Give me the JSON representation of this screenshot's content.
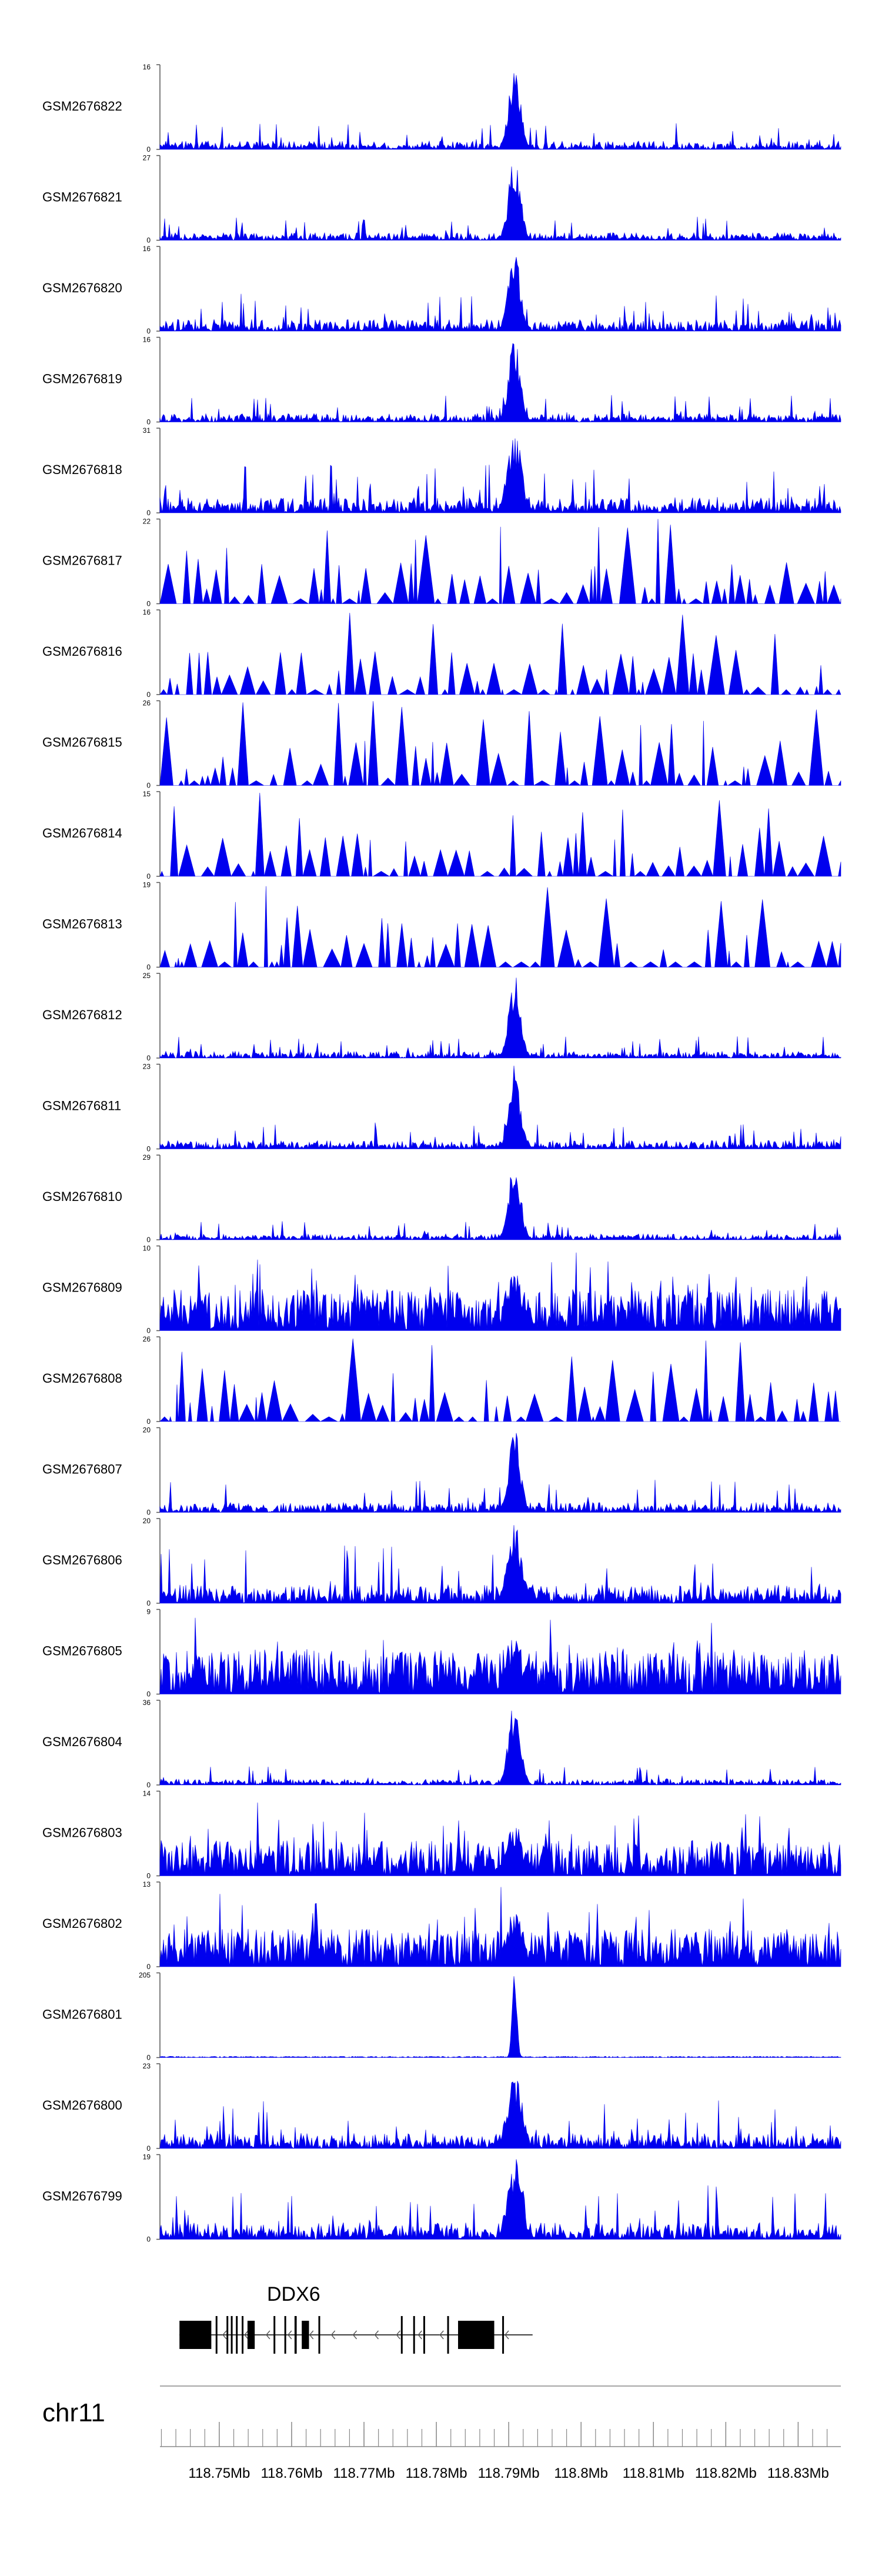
{
  "chromosome": "chr11",
  "colors": {
    "signal": "#0000ee",
    "axis": "#555555",
    "gene": "#000000",
    "text": "#000000"
  },
  "chart_data": {
    "type": "area",
    "x_range_mb": [
      118.7418,
      118.8359
    ],
    "peak_center_mb": 118.7908,
    "tracks": [
      {
        "name": "GSM2676822",
        "ymin": 0,
        "ymax": 16,
        "tick_top": "16",
        "tick_bottom": "0",
        "profile": "sharp",
        "baseline": 0.1
      },
      {
        "name": "GSM2676821",
        "ymin": 0,
        "ymax": 27,
        "tick_top": "27",
        "tick_bottom": "0",
        "profile": "sharp",
        "baseline": 0.09
      },
      {
        "name": "GSM2676820",
        "ymin": 0,
        "ymax": 16,
        "tick_top": "16",
        "tick_bottom": "0",
        "profile": "sharp",
        "baseline": 0.14
      },
      {
        "name": "GSM2676819",
        "ymin": 0,
        "ymax": 16,
        "tick_top": "16",
        "tick_bottom": "0",
        "profile": "sharp",
        "baseline": 0.1
      },
      {
        "name": "GSM2676818",
        "ymin": 0,
        "ymax": 31,
        "tick_top": "31",
        "tick_bottom": "0",
        "profile": "mixed",
        "baseline": 0.18
      },
      {
        "name": "GSM2676817",
        "ymin": 0,
        "ymax": 22,
        "tick_top": "22",
        "tick_bottom": "0",
        "profile": "sparse",
        "baseline": 0.3
      },
      {
        "name": "GSM2676816",
        "ymin": 0,
        "ymax": 16,
        "tick_top": "16",
        "tick_bottom": "0",
        "profile": "sparse",
        "baseline": 0.3
      },
      {
        "name": "GSM2676815",
        "ymin": 0,
        "ymax": 26,
        "tick_top": "26",
        "tick_bottom": "0",
        "profile": "sparse",
        "baseline": 0.28
      },
      {
        "name": "GSM2676814",
        "ymin": 0,
        "ymax": 15,
        "tick_top": "15",
        "tick_bottom": "0",
        "profile": "sparse",
        "baseline": 0.3
      },
      {
        "name": "GSM2676813",
        "ymin": 0,
        "ymax": 19,
        "tick_top": "19",
        "tick_bottom": "0",
        "profile": "sparse",
        "baseline": 0.32
      },
      {
        "name": "GSM2676812",
        "ymin": 0,
        "ymax": 25,
        "tick_top": "25",
        "tick_bottom": "0",
        "profile": "sharp",
        "baseline": 0.08
      },
      {
        "name": "GSM2676811",
        "ymin": 0,
        "ymax": 23,
        "tick_top": "23",
        "tick_bottom": "0",
        "profile": "sharp",
        "baseline": 0.1
      },
      {
        "name": "GSM2676810",
        "ymin": 0,
        "ymax": 29,
        "tick_top": "29",
        "tick_bottom": "0",
        "profile": "sharp",
        "baseline": 0.07
      },
      {
        "name": "GSM2676809",
        "ymin": 0,
        "ymax": 10,
        "tick_top": "10",
        "tick_bottom": "0",
        "profile": "broad",
        "baseline": 0.35
      },
      {
        "name": "GSM2676808",
        "ymin": 0,
        "ymax": 26,
        "tick_top": "26",
        "tick_bottom": "0",
        "profile": "sparse",
        "baseline": 0.28
      },
      {
        "name": "GSM2676807",
        "ymin": 0,
        "ymax": 20,
        "tick_top": "20",
        "tick_bottom": "0",
        "profile": "sharp",
        "baseline": 0.12
      },
      {
        "name": "GSM2676806",
        "ymin": 0,
        "ymax": 20,
        "tick_top": "20",
        "tick_bottom": "0",
        "profile": "mixed",
        "baseline": 0.22
      },
      {
        "name": "GSM2676805",
        "ymin": 0,
        "ymax": 9,
        "tick_top": "9",
        "tick_bottom": "0",
        "profile": "broad",
        "baseline": 0.38
      },
      {
        "name": "GSM2676804",
        "ymin": 0,
        "ymax": 36,
        "tick_top": "36",
        "tick_bottom": "0",
        "profile": "sharp",
        "baseline": 0.07
      },
      {
        "name": "GSM2676803",
        "ymin": 0,
        "ymax": 14,
        "tick_top": "14",
        "tick_bottom": "0",
        "profile": "broad",
        "baseline": 0.3
      },
      {
        "name": "GSM2676802",
        "ymin": 0,
        "ymax": 13,
        "tick_top": "13",
        "tick_bottom": "0",
        "profile": "broad",
        "baseline": 0.32
      },
      {
        "name": "GSM2676801",
        "ymin": 0,
        "ymax": 205,
        "tick_top": "205",
        "tick_bottom": "0",
        "profile": "spike",
        "baseline": 0.015
      },
      {
        "name": "GSM2676800",
        "ymin": 0,
        "ymax": 23,
        "tick_top": "23",
        "tick_bottom": "0",
        "profile": "mixed",
        "baseline": 0.18
      },
      {
        "name": "GSM2676799",
        "ymin": 0,
        "ymax": 19,
        "tick_top": "19",
        "tick_bottom": "0",
        "profile": "mixed",
        "baseline": 0.2
      }
    ],
    "gene": {
      "name": "DDX6",
      "strand": "-",
      "start_mb": 118.7445,
      "end_mb": 118.7933,
      "exons_mb": [
        [
          118.7445,
          118.7489
        ],
        [
          118.7495,
          118.7497
        ],
        [
          118.751,
          118.7512
        ],
        [
          118.7516,
          118.7518
        ],
        [
          118.7523,
          118.7525
        ],
        [
          118.7531,
          118.7533
        ],
        [
          118.7539,
          118.7549
        ],
        [
          118.7575,
          118.7577
        ],
        [
          118.759,
          118.7592
        ],
        [
          118.7604,
          118.7607
        ],
        [
          118.7614,
          118.7624
        ],
        [
          118.7637,
          118.7639
        ],
        [
          118.7751,
          118.7753
        ],
        [
          118.7768,
          118.777
        ],
        [
          118.7782,
          118.7784
        ],
        [
          118.7815,
          118.7817
        ],
        [
          118.783,
          118.788
        ],
        [
          118.7891,
          118.7893
        ]
      ]
    },
    "axis": {
      "ticks": [
        {
          "value": 118.75,
          "label": "118.75Mb"
        },
        {
          "value": 118.76,
          "label": "118.76Mb"
        },
        {
          "value": 118.77,
          "label": "118.77Mb"
        },
        {
          "value": 118.78,
          "label": "118.78Mb"
        },
        {
          "value": 118.79,
          "label": "118.79Mb"
        },
        {
          "value": 118.8,
          "label": "118.8Mb"
        },
        {
          "value": 118.81,
          "label": "118.81Mb"
        },
        {
          "value": 118.82,
          "label": "118.82Mb"
        },
        {
          "value": 118.83,
          "label": "118.83Mb"
        }
      ],
      "minor_step_mb": 0.002
    }
  }
}
